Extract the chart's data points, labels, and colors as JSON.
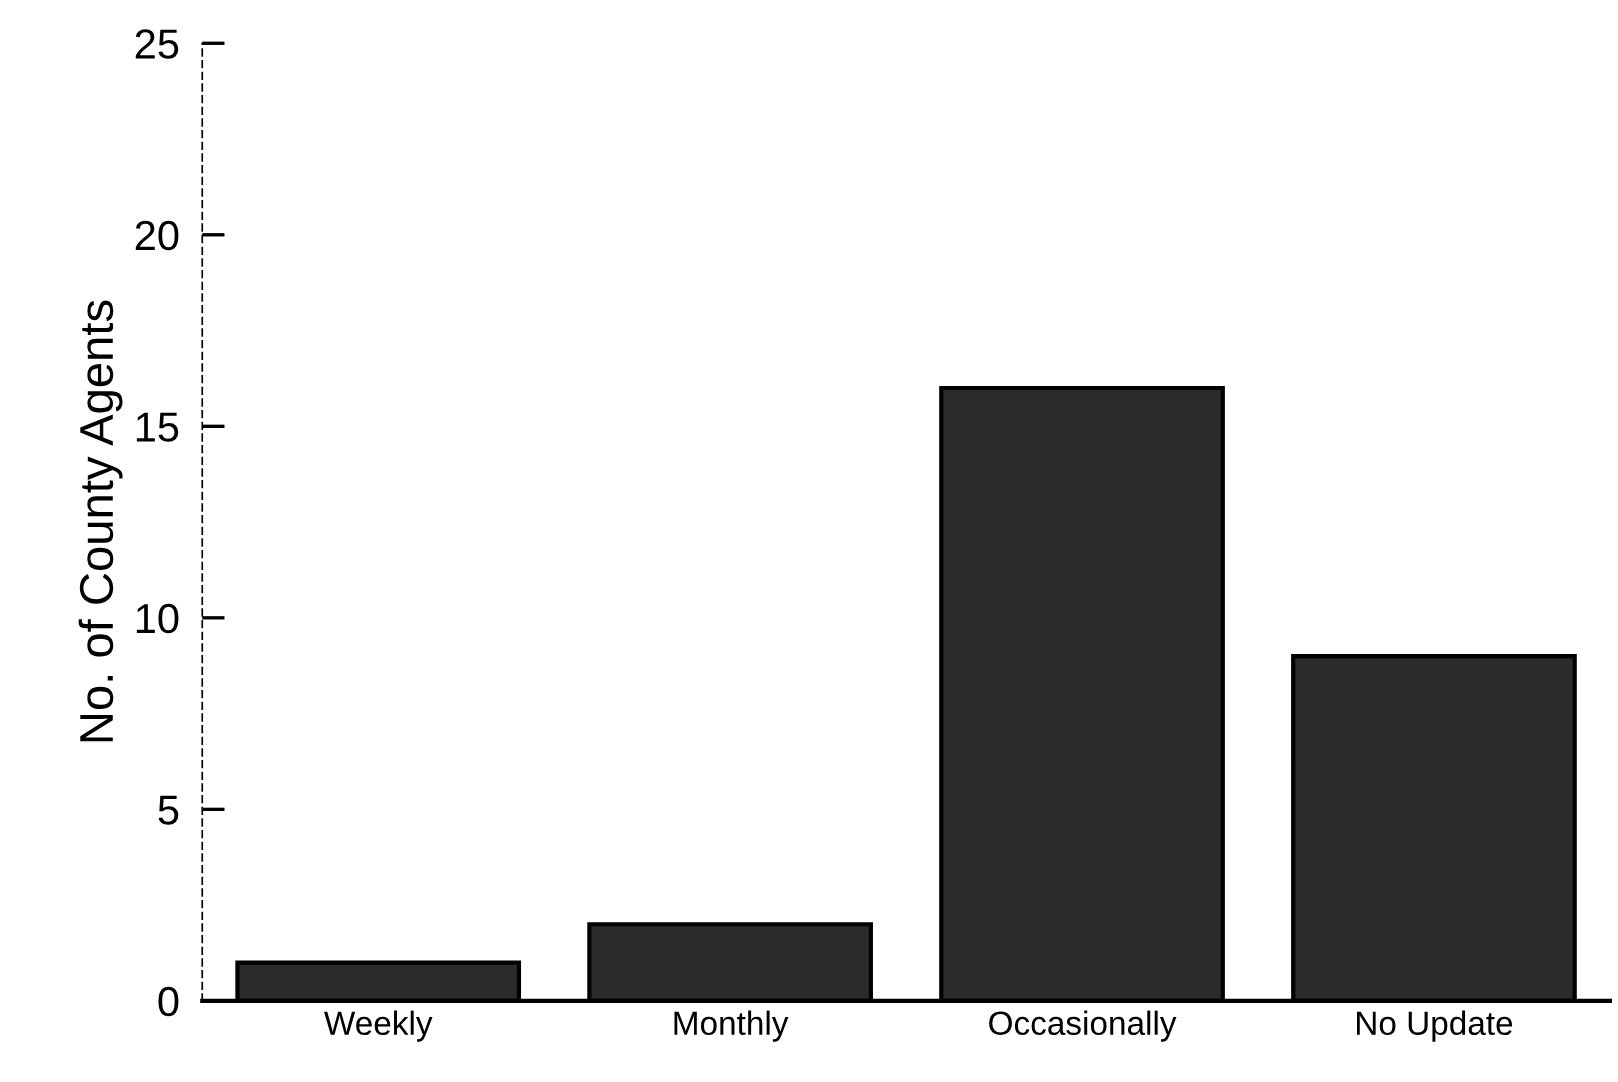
{
  "chart_data": {
    "type": "bar",
    "ylabel": "No. of County Agents",
    "categories": [
      "Weekly",
      "Monthly",
      "Occasionally",
      "No Update"
    ],
    "values": [
      1,
      2,
      16,
      9
    ],
    "color": "#2b2b2b",
    "ylim": [
      0,
      25
    ],
    "yticks": [
      0,
      5,
      10,
      15,
      20,
      25
    ],
    "grid": false,
    "legend": false
  }
}
